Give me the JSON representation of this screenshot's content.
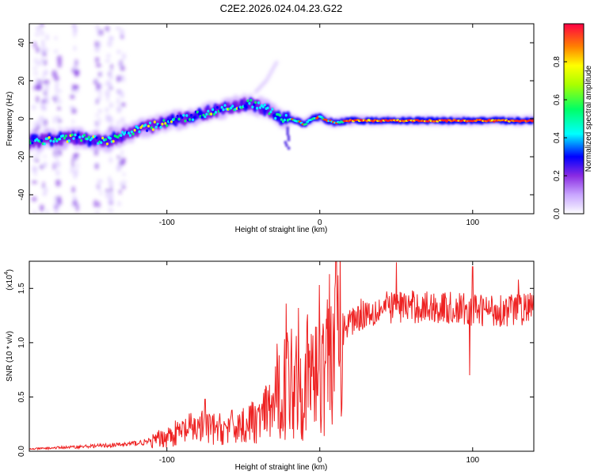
{
  "chart_data": [
    {
      "type": "heatmap",
      "title": "C2E2.2026.024.04.23.G22",
      "xlabel": "Height of straight line (km)",
      "ylabel": "Frequency (Hz)",
      "xlim": [
        -190,
        140
      ],
      "ylim": [
        -50,
        50
      ],
      "xticks": [
        -100,
        0,
        100
      ],
      "xtick_labels": [
        "-100",
        "0",
        "100"
      ],
      "yticks": [
        -40,
        -20,
        0,
        20,
        40
      ],
      "ytick_labels": [
        "-40",
        "-20",
        "0",
        "20",
        "40"
      ],
      "colorbar": {
        "label": "Normalized spectral amplitude",
        "range": [
          0,
          1
        ],
        "ticks": [
          0.0,
          0.2,
          0.4,
          0.6,
          0.8
        ],
        "tick_labels": [
          "0.0",
          "0.2",
          "0.4",
          "0.6",
          "0.8"
        ],
        "colors": [
          "#ffffff",
          "#e6d9ff",
          "#c9a6ff",
          "#8a2be2",
          "#0000ff",
          "#00ffff",
          "#00ff66",
          "#aaff00",
          "#ffff00",
          "#ff8000",
          "#ff0000"
        ]
      },
      "trace": {
        "x": [
          -190,
          -160,
          -140,
          -120,
          -100,
          -80,
          -60,
          -45,
          -35,
          -25,
          -20,
          -15,
          -10,
          -5,
          0,
          5,
          10,
          20,
          40,
          60,
          80,
          100,
          120,
          140
        ],
        "y": [
          -12,
          -10,
          -12,
          -6,
          -2,
          2,
          6,
          8,
          5,
          0,
          0,
          -1,
          -3,
          0,
          1,
          -1,
          -2,
          -1,
          -1,
          -1,
          -1,
          -1,
          -1,
          -1
        ]
      },
      "faint_branch": {
        "x": [
          -42,
          -35,
          -28
        ],
        "y": [
          14,
          20,
          30
        ]
      }
    },
    {
      "type": "line",
      "xlabel": "Height of straight line (km)",
      "ylabel": "SNR (10 * v/v)",
      "y_scale_label": "(x10",
      "y_scale_exp": "4",
      "y_scale_suffix": ")",
      "xlim": [
        -190,
        140
      ],
      "ylim": [
        0,
        1.75
      ],
      "xticks": [
        -100,
        0,
        100
      ],
      "xtick_labels": [
        "-100",
        "0",
        "100"
      ],
      "yticks": [
        0.0,
        0.5,
        1.0,
        1.5
      ],
      "ytick_labels": [
        "0.0",
        "0.5",
        "1.0",
        "1.5"
      ],
      "color": "#ee2222",
      "envelope": {
        "x": [
          -190,
          -160,
          -130,
          -110,
          -95,
          -80,
          -65,
          -50,
          -40,
          -30,
          -25,
          -20,
          -15,
          -10,
          -5,
          0,
          5,
          10,
          15,
          20,
          25,
          30,
          40,
          50,
          60,
          80,
          100,
          120,
          140
        ],
        "y": [
          0.02,
          0.04,
          0.06,
          0.09,
          0.16,
          0.22,
          0.2,
          0.24,
          0.28,
          0.42,
          0.55,
          0.66,
          0.72,
          0.62,
          0.7,
          0.85,
          0.98,
          1.05,
          1.12,
          1.2,
          1.25,
          1.28,
          1.31,
          1.34,
          1.33,
          1.32,
          1.3,
          1.3,
          1.32
        ]
      },
      "spikes": [
        {
          "x": -75,
          "y": 0.48
        },
        {
          "x": -45,
          "y": 0.42
        },
        {
          "x": -28,
          "y": 0.99
        },
        {
          "x": -22,
          "y": 1.36
        },
        {
          "x": -14,
          "y": 1.32
        },
        {
          "x": -8,
          "y": 1.26
        },
        {
          "x": 12,
          "y": 1.62
        },
        {
          "x": 14,
          "y": 0.32
        },
        {
          "x": 50,
          "y": 1.74
        },
        {
          "x": 98,
          "y": 0.7
        },
        {
          "x": 100,
          "y": 1.7
        },
        {
          "x": 130,
          "y": 1.58
        }
      ]
    }
  ]
}
